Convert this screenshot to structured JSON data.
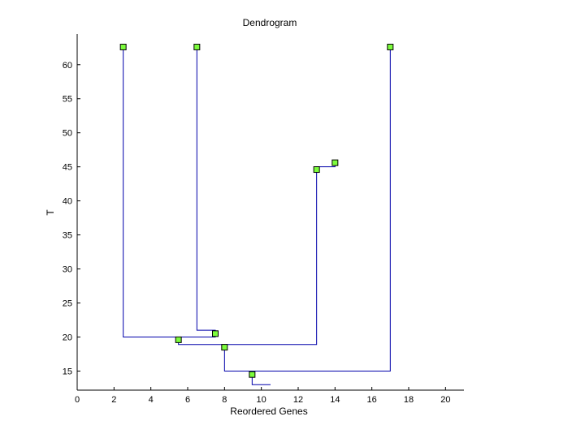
{
  "chart_data": {
    "type": "dendrogram",
    "title": "Dendrogram",
    "xlabel": "Reordered Genes",
    "ylabel": "T",
    "xlim": [
      0,
      21
    ],
    "ylim": [
      12.2,
      64.5
    ],
    "xticks": [
      0,
      2,
      4,
      6,
      8,
      10,
      12,
      14,
      16,
      18,
      20
    ],
    "yticks": [
      15,
      20,
      25,
      30,
      35,
      40,
      45,
      50,
      55,
      60
    ],
    "grid": false,
    "colors": {
      "link": "#0000aa",
      "node_fill": "#7cfc3c",
      "node_stroke": "#000000",
      "axis": "#000000"
    },
    "links": [
      {
        "x_left": 6.5,
        "x_right": 7.5,
        "y": 21.0,
        "left_top": 62.6,
        "right_top": 20.5
      },
      {
        "x_left": 2.5,
        "x_right": 7.5,
        "y": 20.0,
        "left_top": 62.6,
        "right_top": 20.5
      },
      {
        "x_left": 13.0,
        "x_right": 14.0,
        "y": 45.0,
        "left_top": 44.6,
        "right_top": 45.6
      },
      {
        "x_left": 5.5,
        "x_right": 13.0,
        "y": 18.9,
        "left_top": 19.6,
        "right_top": 44.6
      },
      {
        "x_left": 8.0,
        "x_right": 17.0,
        "y": 15.0,
        "left_top": 18.5,
        "right_top": 62.6
      },
      {
        "x_left": 9.5,
        "x_right": 10.5,
        "y": 13.0,
        "left_top": 14.5,
        "right_top": 13.0
      }
    ],
    "nodes": [
      {
        "x": 2.5,
        "y": 62.6
      },
      {
        "x": 6.5,
        "y": 62.6
      },
      {
        "x": 17.0,
        "y": 62.6
      },
      {
        "x": 14.0,
        "y": 45.6
      },
      {
        "x": 13.0,
        "y": 44.6
      },
      {
        "x": 7.5,
        "y": 20.5
      },
      {
        "x": 5.5,
        "y": 19.6
      },
      {
        "x": 8.0,
        "y": 18.5
      },
      {
        "x": 9.5,
        "y": 14.5
      }
    ]
  }
}
